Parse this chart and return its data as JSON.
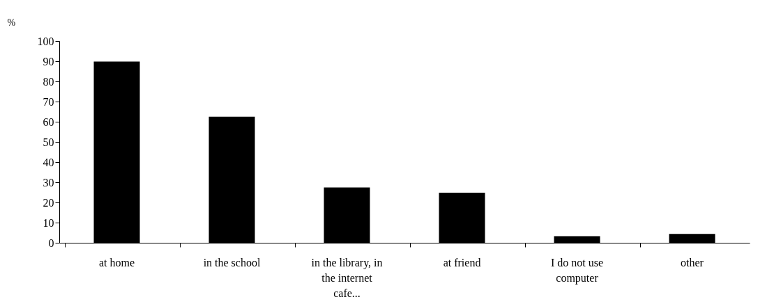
{
  "chart_data": {
    "type": "bar",
    "ylabel": "%",
    "categories": [
      "at home",
      "in the school",
      "in the library, in the internet cafe...",
      "at friend",
      "I do not use computer",
      "other"
    ],
    "values": [
      89.8,
      62.5,
      27.4,
      24.8,
      3.3,
      4.4
    ],
    "color": "#000000",
    "ylim": [
      0,
      100
    ],
    "yticks": [
      0,
      10,
      20,
      30,
      40,
      50,
      60,
      70,
      80,
      90,
      100
    ],
    "grid": false
  }
}
